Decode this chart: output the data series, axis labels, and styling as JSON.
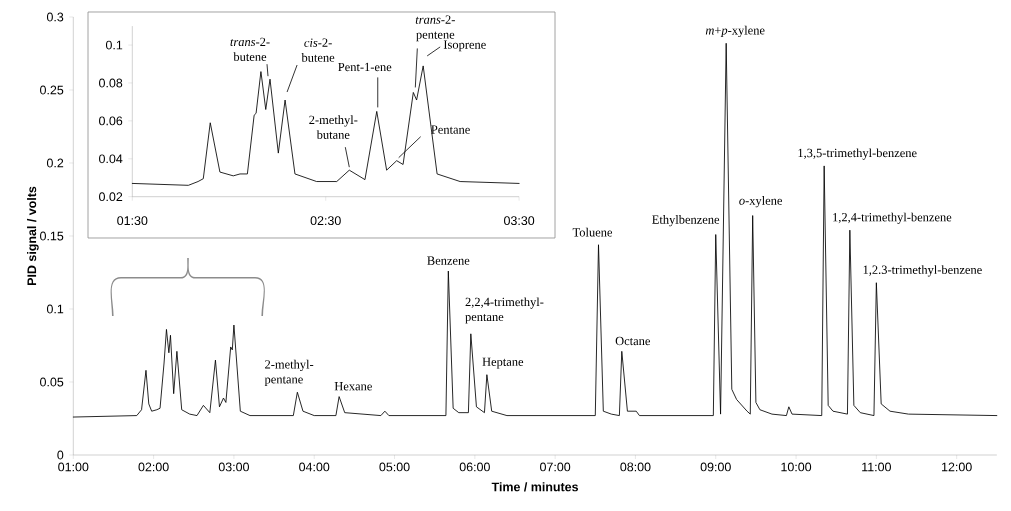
{
  "chart_data": [
    {
      "type": "line",
      "xlabel": "Time / minutes",
      "ylabel": "PID signal / volts",
      "color": "#000000",
      "marker": "none",
      "line_style": "solid",
      "x": [
        1.0,
        1.79,
        1.85,
        1.905,
        1.94,
        1.976,
        2.04,
        2.08,
        2.13,
        2.16,
        2.19,
        2.21,
        2.25,
        2.29,
        2.35,
        2.45,
        2.54,
        2.62,
        2.7,
        2.77,
        2.82,
        2.87,
        2.9,
        2.96,
        2.98,
        3.0,
        3.08,
        3.2,
        3.74,
        3.79,
        3.86,
        4.0,
        4.27,
        4.31,
        4.38,
        4.83,
        4.88,
        4.93,
        5.64,
        5.67,
        5.73,
        5.8,
        5.92,
        5.95,
        6.02,
        6.12,
        6.15,
        6.21,
        6.4,
        7.5,
        7.54,
        7.6,
        7.7,
        7.8,
        7.83,
        7.9,
        8.01,
        8.05,
        8.97,
        9.0,
        9.06,
        9.13,
        9.2,
        9.26,
        9.39,
        9.43,
        9.46,
        9.5,
        9.55,
        9.7,
        9.88,
        9.91,
        9.95,
        10.32,
        10.35,
        10.4,
        10.46,
        10.64,
        10.67,
        10.72,
        10.8,
        10.97,
        11.0,
        11.06,
        11.17,
        11.4,
        12.5
      ],
      "values": [
        0.026,
        0.027,
        0.031,
        0.058,
        0.035,
        0.03,
        0.031,
        0.032,
        0.063,
        0.086,
        0.07,
        0.082,
        0.042,
        0.071,
        0.031,
        0.028,
        0.027,
        0.034,
        0.029,
        0.065,
        0.033,
        0.039,
        0.036,
        0.074,
        0.072,
        0.089,
        0.03,
        0.027,
        0.027,
        0.043,
        0.03,
        0.027,
        0.027,
        0.04,
        0.029,
        0.027,
        0.03,
        0.027,
        0.027,
        0.126,
        0.032,
        0.029,
        0.029,
        0.083,
        0.033,
        0.029,
        0.055,
        0.03,
        0.027,
        0.027,
        0.144,
        0.03,
        0.028,
        0.027,
        0.071,
        0.03,
        0.03,
        0.027,
        0.027,
        0.151,
        0.028,
        0.282,
        0.045,
        0.038,
        0.03,
        0.028,
        0.164,
        0.036,
        0.031,
        0.028,
        0.027,
        0.033,
        0.028,
        0.027,
        0.198,
        0.034,
        0.03,
        0.028,
        0.154,
        0.034,
        0.029,
        0.027,
        0.118,
        0.035,
        0.03,
        0.028,
        0.027
      ],
      "xlim": [
        1,
        12.5
      ],
      "ylim": [
        0,
        0.3
      ],
      "xticks": [
        {
          "value": 1,
          "label": "01:00"
        },
        {
          "value": 2,
          "label": "02:00"
        },
        {
          "value": 3,
          "label": "03:00"
        },
        {
          "value": 4,
          "label": "04:00"
        },
        {
          "value": 5,
          "label": "05:00"
        },
        {
          "value": 6,
          "label": "06:00"
        },
        {
          "value": 7,
          "label": "07:00"
        },
        {
          "value": 8,
          "label": "08:00"
        },
        {
          "value": 9,
          "label": "09:00"
        },
        {
          "value": 10,
          "label": "10:00"
        },
        {
          "value": 11,
          "label": "11:00"
        },
        {
          "value": 12,
          "label": "12:00"
        }
      ],
      "yticks": [
        0,
        0.05,
        0.1,
        0.15,
        0.2,
        0.25,
        0.3
      ],
      "annotations": [
        {
          "text": "2-methyl-pentane",
          "x": 3.79,
          "y": 0.043
        },
        {
          "text": "Hexane",
          "x": 4.31,
          "y": 0.04
        },
        {
          "text": "Benzene",
          "x": 5.67,
          "y": 0.126
        },
        {
          "text": "2,2,4-trimethyl-pentane",
          "x": 5.95,
          "y": 0.083
        },
        {
          "text": "Heptane",
          "x": 6.15,
          "y": 0.055
        },
        {
          "text": "Toluene",
          "x": 7.54,
          "y": 0.144
        },
        {
          "text": "Octane",
          "x": 7.83,
          "y": 0.071
        },
        {
          "text": "Ethylbenzene",
          "x": 9.0,
          "y": 0.151
        },
        {
          "text": "*m*+*p*-xylene",
          "x": 9.13,
          "y": 0.282
        },
        {
          "text": "*o*-xylene",
          "x": 9.46,
          "y": 0.164
        },
        {
          "text": "1,3,5-trimethyl-benzene",
          "x": 10.35,
          "y": 0.198
        },
        {
          "text": "1,2,4-trimethyl-benzene",
          "x": 10.67,
          "y": 0.154
        },
        {
          "text": "1,2.3-trimethyl-benzene",
          "x": 11.0,
          "y": 0.118
        }
      ]
    },
    {
      "type": "line",
      "color": "#000000",
      "marker": "none",
      "line_style": "solid",
      "x": [
        1.5,
        1.79,
        1.84,
        1.867,
        1.903,
        1.953,
        2.022,
        2.057,
        2.095,
        2.13,
        2.14,
        2.165,
        2.19,
        2.212,
        2.255,
        2.29,
        2.341,
        2.453,
        2.557,
        2.622,
        2.703,
        2.764,
        2.815,
        2.867,
        2.9,
        2.953,
        2.97,
        3.004,
        3.076,
        3.195,
        3.5
      ],
      "values": [
        0.027,
        0.026,
        0.028,
        0.0295,
        0.059,
        0.033,
        0.031,
        0.032,
        0.032,
        0.063,
        0.064,
        0.086,
        0.066,
        0.082,
        0.043,
        0.071,
        0.032,
        0.028,
        0.028,
        0.034,
        0.029,
        0.065,
        0.034,
        0.039,
        0.037,
        0.075,
        0.071,
        0.089,
        0.032,
        0.028,
        0.027
      ],
      "xlim": [
        1.5,
        3.5
      ],
      "ylim": [
        0.02,
        0.11
      ],
      "xticks": [
        {
          "value": 1.5,
          "label": "01:30"
        },
        {
          "value": 2.5,
          "label": "02:30"
        },
        {
          "value": 3.5,
          "label": "03:30"
        }
      ],
      "yticks": [
        0.02,
        0.04,
        0.06,
        0.08,
        0.1
      ],
      "annotations": [
        {
          "text": "*trans*-2-butene",
          "x": 2.212,
          "y": 0.082
        },
        {
          "text": "*cis*-2-butene",
          "x": 2.29,
          "y": 0.071
        },
        {
          "text": "2-methyl-butane",
          "x": 2.622,
          "y": 0.034
        },
        {
          "text": "Pent-1-ene",
          "x": 2.764,
          "y": 0.065
        },
        {
          "text": "*trans*-2-pentene",
          "x": 2.953,
          "y": 0.075
        },
        {
          "text": "Isoprene",
          "x": 3.004,
          "y": 0.089
        },
        {
          "text": "Pentane",
          "x": 2.867,
          "y": 0.039
        }
      ]
    }
  ]
}
